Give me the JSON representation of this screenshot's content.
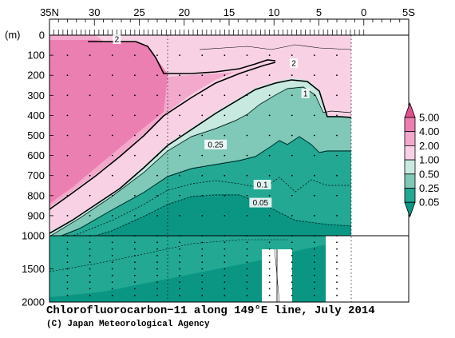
{
  "chart_data": {
    "type": "heatmap",
    "title": "Chlorofluorocarbon−11 along 149°E line, July 2014",
    "credit": "(C) Japan Meteorological Agency",
    "ylabel": "(m)",
    "x_ticks": [
      "35N",
      "30",
      "25",
      "20",
      "15",
      "10",
      "5",
      "0",
      "5S"
    ],
    "x_tick_values": [
      35,
      30,
      25,
      20,
      15,
      10,
      5,
      0,
      -5
    ],
    "xlim": [
      35,
      -5
    ],
    "y_ticks_upper": [
      "0",
      "100",
      "200",
      "300",
      "400",
      "500",
      "600",
      "700",
      "800",
      "900",
      "1000"
    ],
    "y_tick_values_upper": [
      0,
      100,
      200,
      300,
      400,
      500,
      600,
      700,
      800,
      900,
      1000
    ],
    "y_ticks_lower": [
      "1500",
      "2000"
    ],
    "y_tick_values_lower": [
      1500,
      2000
    ],
    "ylim": [
      0,
      2000
    ],
    "colorbar": {
      "levels": [
        "5.00",
        "4.00",
        "2.00",
        "1.00",
        "0.50",
        "0.25",
        "0.05"
      ],
      "colors": [
        "#e0508e",
        "#ec7fb2",
        "#f2a9cc",
        "#f8d2e4",
        "#c8e9e0",
        "#80c8b8",
        "#22a893",
        "#0a9683"
      ]
    },
    "contour_labels": [
      {
        "text": "2",
        "lat": 27.5,
        "depth": 20
      },
      {
        "text": "2",
        "lat": 7.8,
        "depth": 140
      },
      {
        "text": "1",
        "lat": 6.5,
        "depth": 290
      },
      {
        "text": "0.25",
        "lat": 16.5,
        "depth": 545
      },
      {
        "text": "0.1",
        "lat": 11.3,
        "depth": 745
      },
      {
        "text": "0.05",
        "lat": 11.5,
        "depth": 835
      }
    ]
  }
}
